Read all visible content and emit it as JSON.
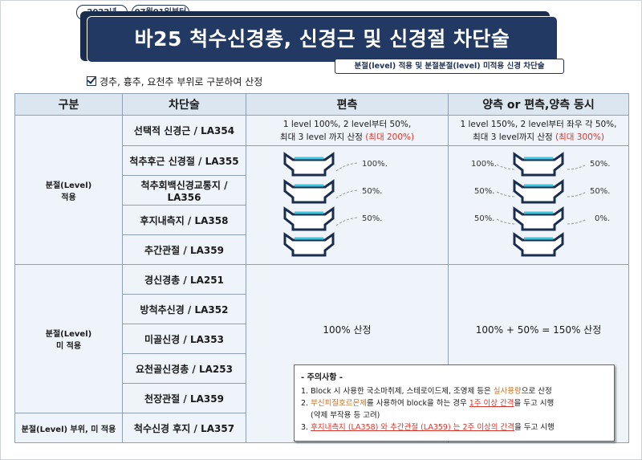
{
  "header": {
    "date_pill": "2022년",
    "start_pill": "07월01일부터",
    "title": "바25 척수신경총, 신경근 및 신경절 차단술",
    "subtitle": "분절(level) 적용 및 분절분절(level) 미적용 신경 차단술",
    "note": "경추, 흉추, 요천추 부위로 구분하여 산정"
  },
  "table": {
    "headers": [
      "구분",
      "차단술",
      "편측",
      "양측 or 편측,양측 동시"
    ],
    "groups": [
      {
        "label_line1": "분절(Level)",
        "label_line2": "적용"
      },
      {
        "label_line1": "분절(Level)",
        "label_line2": "미 적용"
      },
      {
        "label_line1": "분절(Level) 부위, 미 적용",
        "label_line2": ""
      }
    ],
    "methods": [
      "선택적 신경근 / LA354",
      "척추후근 신경절 / LA355",
      "척추회백신경교통지 / LA356",
      "후지내측지 / LA358",
      "추간관절 / LA359",
      "경신경총 / LA251",
      "방척추신경 / LA352",
      "미골신경 / LA353",
      "요천골신경총 / LA253",
      "천장관절 / LA359",
      "척수신경 후지 / LA357"
    ],
    "unilateral_info": {
      "line1": "1 level 100%, 2 level부터 50%,",
      "line2_prefix": "최대 3 level 까지 산정 ",
      "line2_red": "(최대 200%)"
    },
    "bilateral_info": {
      "line1": "1 level 150%, 2 level부터 좌우 각 50%,",
      "line2_prefix": "최대 3 level까지 산정 ",
      "line2_red": "(최대 300%)"
    },
    "unilateral_pct": [
      "100%.",
      "50%.",
      "50%."
    ],
    "bilateral_left_pct": [
      "100%.",
      "50%.",
      "50%."
    ],
    "bilateral_right_pct": [
      "50%.",
      "50%.",
      "0%."
    ],
    "unilateral_nolevel": "100% 산정",
    "bilateral_nolevel": "100% + 50% = 150% 산정"
  },
  "caution": {
    "title": "- 주의사항 -",
    "item1_a": "1. Block 시 사용한 국소마취제, 스테로이드제, 조영제 등은 ",
    "item1_b": "실사용량",
    "item1_c": "으로 산정",
    "item2_a": "2. ",
    "item2_b": "부신피질호르몬제",
    "item2_c": "를 사용하여 block을 하는 경우 ",
    "item2_d": "1주 이상 간격",
    "item2_e": "을 두고 시행",
    "item2_f": "(약제 부작용 등 고려)",
    "item3_a": "3. ",
    "item3_b": "후지내측지 (LA358) 와 추간관절 (LA359) 는 2주 이상의 간격",
    "item3_c": "을 두고 시행"
  },
  "colors": {
    "navy": "#1b2d4f",
    "red": "#d9352a",
    "cell": "#eef4fa",
    "header": "#dbe6f1",
    "cyan": "#3ec6e0"
  }
}
